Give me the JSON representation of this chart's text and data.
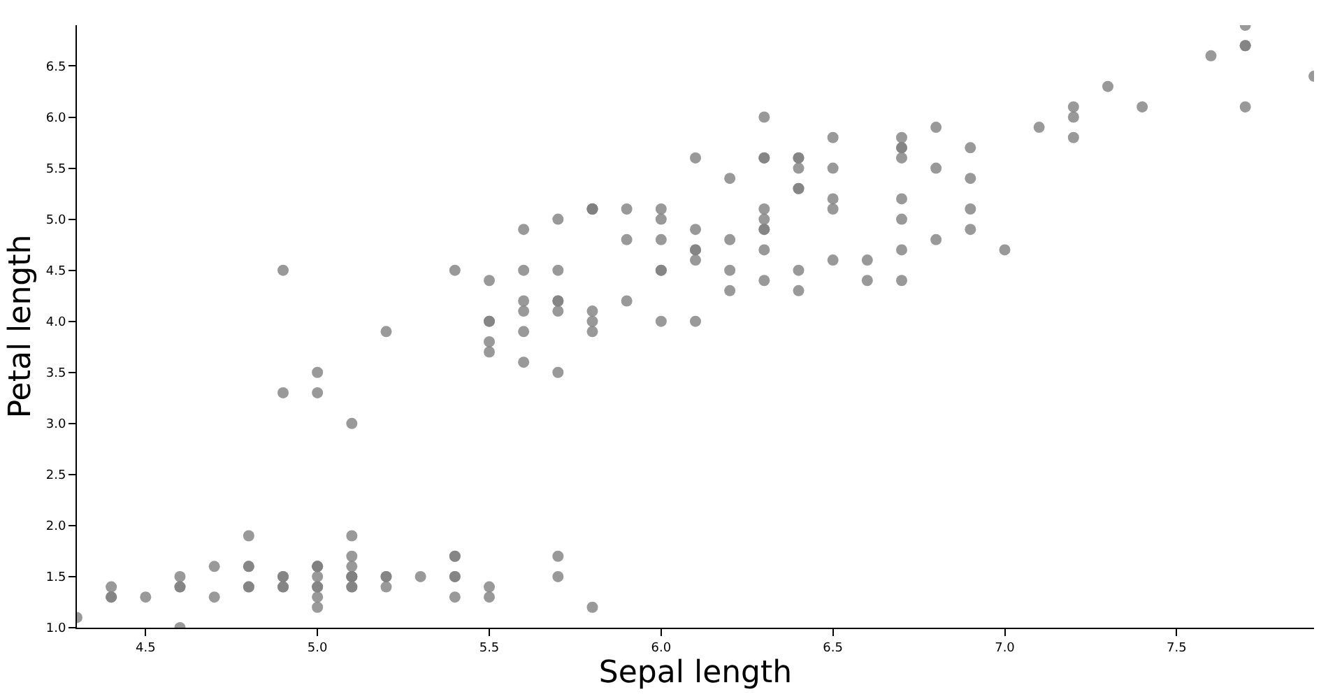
{
  "chart_data": {
    "type": "scatter",
    "xlabel": "Sepal length",
    "ylabel": "Petal length",
    "x": [
      5.1,
      4.9,
      4.7,
      4.6,
      5.0,
      5.4,
      4.6,
      5.0,
      4.4,
      4.9,
      5.4,
      4.8,
      4.8,
      4.3,
      5.8,
      5.7,
      5.4,
      5.1,
      5.7,
      5.1,
      5.4,
      5.1,
      4.6,
      5.1,
      4.8,
      5.0,
      5.0,
      5.2,
      5.2,
      4.7,
      4.8,
      5.4,
      5.2,
      5.5,
      4.9,
      5.0,
      5.5,
      4.9,
      4.4,
      5.1,
      5.0,
      4.5,
      4.4,
      5.0,
      5.1,
      4.8,
      5.1,
      4.6,
      5.3,
      5.0,
      7.0,
      6.4,
      6.9,
      5.5,
      6.5,
      5.7,
      6.3,
      4.9,
      6.6,
      5.2,
      5.0,
      5.9,
      6.0,
      6.1,
      5.6,
      6.7,
      5.6,
      5.8,
      6.2,
      5.6,
      5.9,
      6.1,
      6.3,
      6.1,
      6.4,
      6.6,
      6.8,
      6.7,
      6.0,
      5.7,
      5.5,
      5.5,
      5.8,
      6.0,
      5.4,
      6.0,
      6.7,
      6.3,
      5.6,
      5.5,
      5.5,
      6.1,
      5.8,
      5.0,
      5.6,
      5.7,
      5.7,
      6.2,
      5.1,
      5.7,
      6.3,
      5.8,
      7.1,
      6.3,
      6.5,
      7.6,
      4.9,
      7.3,
      6.7,
      7.2,
      6.5,
      6.4,
      6.8,
      5.7,
      5.8,
      6.4,
      6.5,
      7.7,
      7.7,
      6.0,
      6.9,
      5.6,
      7.7,
      6.3,
      6.7,
      7.2,
      6.2,
      6.1,
      6.4,
      7.2,
      7.4,
      7.9,
      6.4,
      6.3,
      6.1,
      7.7,
      6.3,
      6.4,
      6.0,
      6.9,
      6.7,
      6.9,
      5.8,
      6.8,
      6.7,
      6.7,
      6.3,
      6.5,
      6.2,
      5.9
    ],
    "values": [
      1.4,
      1.4,
      1.3,
      1.5,
      1.4,
      1.7,
      1.4,
      1.5,
      1.4,
      1.5,
      1.5,
      1.6,
      1.4,
      1.1,
      1.2,
      1.5,
      1.3,
      1.4,
      1.7,
      1.5,
      1.7,
      1.5,
      1.0,
      1.7,
      1.9,
      1.6,
      1.6,
      1.5,
      1.4,
      1.6,
      1.6,
      1.5,
      1.5,
      1.4,
      1.5,
      1.2,
      1.3,
      1.4,
      1.3,
      1.5,
      1.3,
      1.3,
      1.3,
      1.6,
      1.9,
      1.4,
      1.6,
      1.4,
      1.5,
      1.4,
      4.7,
      4.5,
      4.9,
      4.0,
      4.6,
      4.5,
      4.7,
      3.3,
      4.6,
      3.9,
      3.5,
      4.2,
      4.0,
      4.7,
      3.6,
      4.4,
      4.5,
      4.1,
      4.5,
      3.9,
      4.8,
      4.0,
      4.9,
      4.7,
      4.3,
      4.4,
      4.8,
      5.0,
      4.5,
      3.5,
      3.8,
      3.7,
      3.9,
      5.1,
      4.5,
      4.5,
      4.7,
      4.4,
      4.1,
      4.0,
      4.4,
      4.6,
      4.0,
      3.3,
      4.2,
      4.2,
      4.2,
      4.3,
      3.0,
      4.1,
      6.0,
      5.1,
      5.9,
      5.6,
      5.8,
      6.6,
      4.5,
      6.3,
      5.8,
      6.1,
      5.1,
      5.3,
      5.5,
      5.0,
      5.1,
      5.3,
      5.5,
      6.7,
      6.9,
      5.0,
      5.7,
      4.9,
      6.7,
      4.9,
      5.7,
      6.0,
      4.8,
      4.9,
      5.6,
      5.8,
      6.1,
      6.4,
      5.6,
      5.1,
      5.6,
      6.1,
      5.6,
      5.5,
      4.8,
      5.4,
      5.6,
      5.1,
      5.1,
      5.9,
      5.7,
      5.2,
      5.0,
      5.2,
      5.4,
      5.1
    ],
    "color": "#808080",
    "marker": "circle",
    "grid": false,
    "xlim": [
      4.3,
      7.9
    ],
    "xticks": [
      {
        "value": 4.5,
        "label": "4.5"
      },
      {
        "value": 5.0,
        "label": "5.0"
      },
      {
        "value": 5.5,
        "label": "5.5"
      },
      {
        "value": 6.0,
        "label": "6.0"
      },
      {
        "value": 6.5,
        "label": "6.5"
      },
      {
        "value": 7.0,
        "label": "7.0"
      },
      {
        "value": 7.5,
        "label": "7.5"
      }
    ],
    "ylim": [
      1.0,
      6.9
    ],
    "yticks": [
      {
        "value": 1.0,
        "label": "1.0"
      },
      {
        "value": 1.5,
        "label": "1.5"
      },
      {
        "value": 2.0,
        "label": "2.0"
      },
      {
        "value": 2.5,
        "label": "2.5"
      },
      {
        "value": 3.0,
        "label": "3.0"
      },
      {
        "value": 3.5,
        "label": "3.5"
      },
      {
        "value": 4.0,
        "label": "4.0"
      },
      {
        "value": 4.5,
        "label": "4.5"
      },
      {
        "value": 5.0,
        "label": "5.0"
      },
      {
        "value": 5.5,
        "label": "5.5"
      },
      {
        "value": 6.0,
        "label": "6.0"
      },
      {
        "value": 6.5,
        "label": "6.5"
      }
    ]
  }
}
